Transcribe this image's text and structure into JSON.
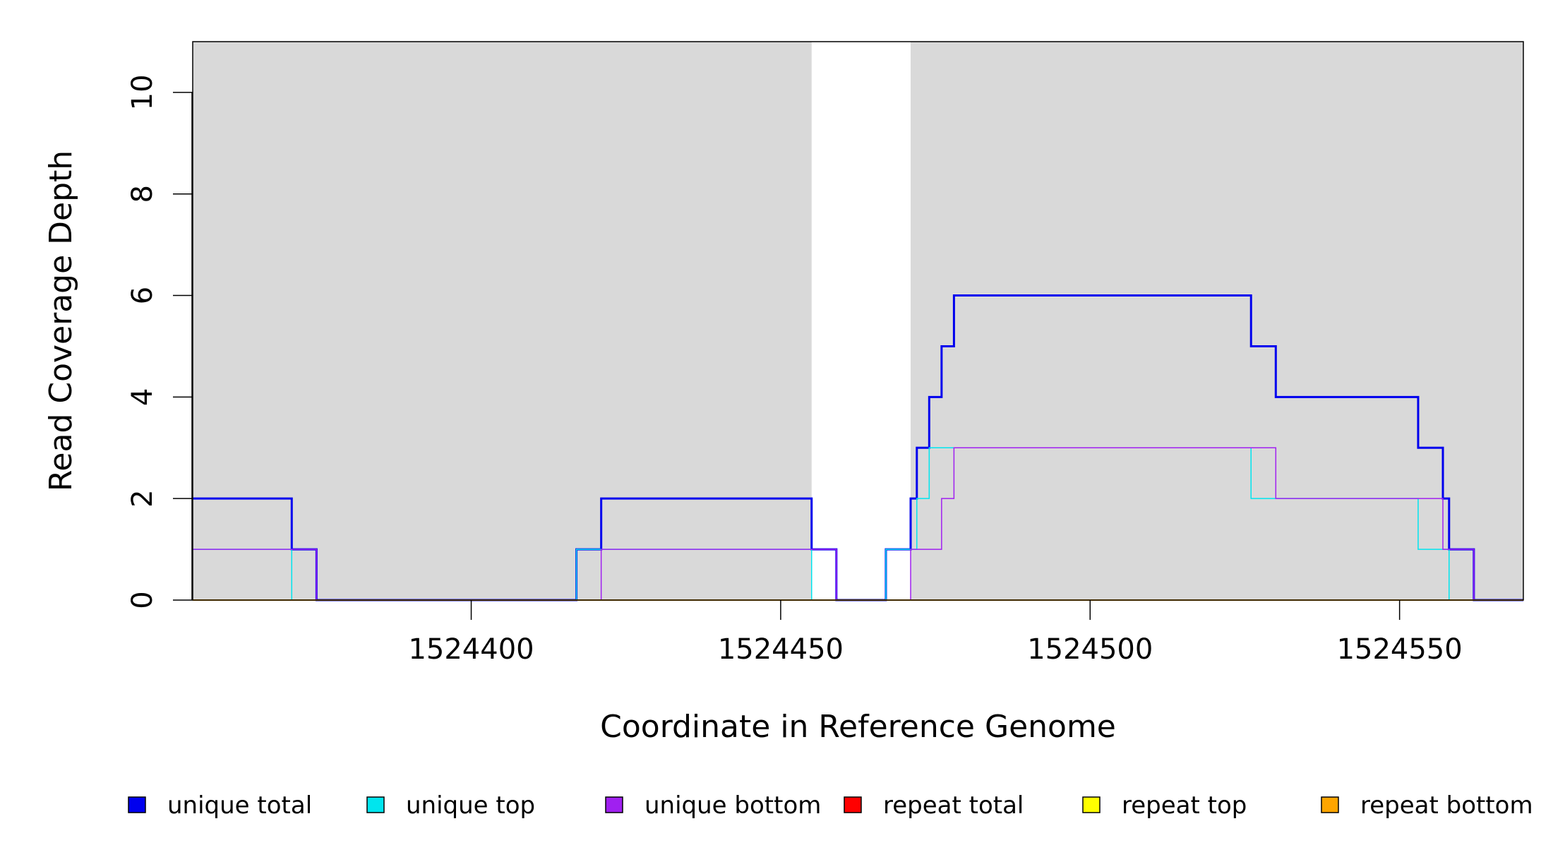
{
  "chart_data": {
    "type": "line",
    "step": true,
    "xlabel": "Coordinate in Reference Genome",
    "ylabel": "Read Coverage Depth",
    "xlim": [
      1524355,
      1524570
    ],
    "ylim": [
      0,
      11
    ],
    "x_ticks": [
      1524400,
      1524450,
      1524500,
      1524550
    ],
    "x_tick_labels": [
      "1524400",
      "1524450",
      "1524500",
      "1524550"
    ],
    "y_ticks": [
      0,
      2,
      4,
      6,
      8,
      10
    ],
    "y_tick_labels": [
      "0",
      "2",
      "4",
      "6",
      "8",
      "10"
    ],
    "background_regions": [
      {
        "from": 1524355,
        "to": 1524455,
        "color": "#d9d9d9"
      },
      {
        "from": 1524471,
        "to": 1524570,
        "color": "#d9d9d9"
      }
    ],
    "legend_position": "bottom",
    "series": [
      {
        "name": "unique total",
        "color": "#0000ee",
        "line_width": 3,
        "x": [
          1524355,
          1524371,
          1524375,
          1524417,
          1524421,
          1524455,
          1524459,
          1524467,
          1524471,
          1524472,
          1524474,
          1524476,
          1524478,
          1524526,
          1524530,
          1524553,
          1524557,
          1524558,
          1524562,
          1524570
        ],
        "y": [
          2,
          1,
          0,
          1,
          2,
          1,
          0,
          1,
          2,
          3,
          4,
          5,
          6,
          5,
          4,
          3,
          2,
          1,
          0,
          0
        ]
      },
      {
        "name": "unique top",
        "color": "#00e5ee",
        "line_width": 1.5,
        "x": [
          1524355,
          1524371,
          1524375,
          1524417,
          1524455,
          1524459,
          1524467,
          1524471,
          1524472,
          1524474,
          1524526,
          1524553,
          1524558,
          1524562,
          1524570
        ],
        "y": [
          1,
          0,
          0,
          1,
          0,
          0,
          1,
          1,
          2,
          3,
          2,
          1,
          0,
          0,
          0
        ]
      },
      {
        "name": "unique bottom",
        "color": "#a020f0",
        "line_width": 1.5,
        "x": [
          1524355,
          1524375,
          1524421,
          1524459,
          1524471,
          1524476,
          1524478,
          1524530,
          1524557,
          1524562,
          1524570
        ],
        "y": [
          1,
          0,
          1,
          0,
          1,
          2,
          3,
          2,
          1,
          0,
          0
        ]
      },
      {
        "name": "repeat total",
        "color": "#ff0000",
        "line_width": 2,
        "x": [
          1524355,
          1524570
        ],
        "y": [
          0,
          0
        ]
      },
      {
        "name": "repeat top",
        "color": "#ffff00",
        "line_width": 2,
        "x": [
          1524355,
          1524570
        ],
        "y": [
          0,
          0
        ]
      },
      {
        "name": "repeat bottom",
        "color": "#ffa500",
        "line_width": 2,
        "x": [
          1524355,
          1524570
        ],
        "y": [
          0,
          0
        ]
      }
    ]
  }
}
